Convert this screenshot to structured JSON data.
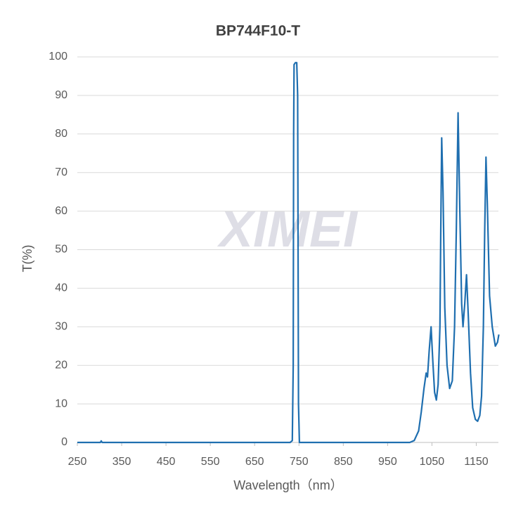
{
  "chart_data": {
    "type": "line",
    "title": "BP744F10-T",
    "watermark": "XIMEI",
    "xlabel": "Wavelength（nm）",
    "ylabel": "T(%)",
    "xlim": [
      250,
      1200
    ],
    "xticks": [
      250,
      350,
      450,
      550,
      650,
      750,
      850,
      950,
      1050,
      1150
    ],
    "ylim": [
      0,
      100
    ],
    "yticks": [
      0,
      10,
      20,
      30,
      40,
      50,
      60,
      70,
      80,
      90,
      100
    ],
    "grid": true,
    "series": [
      {
        "name": "BP744F10-T",
        "color": "#1f6fb0",
        "x": [
          250,
          302,
          304,
          306,
          730,
          735,
          737,
          738,
          739,
          742,
          745,
          747,
          748,
          749,
          751,
          1000,
          1010,
          1020,
          1026,
          1032,
          1037,
          1040,
          1044,
          1048,
          1052,
          1056,
          1060,
          1064,
          1068,
          1070,
          1072,
          1075,
          1079,
          1084,
          1090,
          1096,
          1101,
          1105,
          1109,
          1113,
          1117,
          1120,
          1124,
          1128,
          1132,
          1137,
          1142,
          1148,
          1153,
          1158,
          1162,
          1166,
          1169,
          1172,
          1175,
          1180,
          1186,
          1193,
          1198,
          1201
        ],
        "values": [
          0,
          0,
          0.4,
          0,
          0,
          0.5,
          20,
          80,
          98,
          98.5,
          98.5,
          90,
          50,
          10,
          0,
          0,
          0.5,
          3,
          8,
          14,
          18,
          17,
          24,
          30,
          21,
          13,
          11,
          15,
          30,
          55,
          79,
          65,
          35,
          20,
          14,
          16,
          30,
          55,
          85.5,
          60,
          36,
          30,
          36,
          43.5,
          33,
          18,
          9,
          6,
          5.5,
          7,
          12,
          30,
          55,
          74,
          62,
          38,
          30,
          25,
          26,
          28
        ]
      }
    ]
  }
}
